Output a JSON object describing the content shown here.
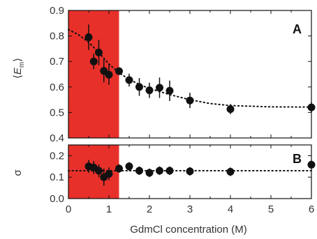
{
  "chart_data": [
    {
      "panel": "A",
      "type": "scatter",
      "panel_label": "A",
      "xlabel": "GdmCl concentration (M)",
      "ylabel": "⟨E_m⟩",
      "xlim": [
        0,
        6
      ],
      "ylim": [
        0.4,
        0.9
      ],
      "x_ticks": [
        "0",
        "1",
        "2",
        "3",
        "4",
        "5",
        "6"
      ],
      "y_ticks": [
        "0.4",
        "0.5",
        "0.6",
        "0.7",
        "0.8",
        "0.9"
      ],
      "y_tick_values": [
        0.4,
        0.5,
        0.6,
        0.7,
        0.8,
        0.9
      ],
      "shaded_region": {
        "x_from": 0,
        "x_to": 1.25,
        "color": "#e8302a"
      },
      "series": [
        {
          "marker": "circle",
          "color": "#111111",
          "x": [
            0.5,
            0.625,
            0.75,
            0.875,
            1.0,
            1.25,
            1.5,
            1.75,
            2.0,
            2.25,
            2.5,
            3.0,
            4.0,
            6.0
          ],
          "y": [
            0.795,
            0.7,
            0.735,
            0.663,
            0.648,
            0.662,
            0.627,
            0.6,
            0.587,
            0.597,
            0.585,
            0.547,
            0.513,
            0.52
          ],
          "error": [
            0.05,
            0.03,
            0.05,
            0.045,
            0.04,
            0.015,
            0.025,
            0.035,
            0.03,
            0.04,
            0.04,
            0.03,
            0.02,
            0.02
          ]
        }
      ],
      "fit": {
        "style": "dotted",
        "x": [
          0,
          0.25,
          0.5,
          0.75,
          1.0,
          1.25,
          1.5,
          1.75,
          2.0,
          2.5,
          3.0,
          3.5,
          4.0,
          5.0,
          6.0
        ],
        "y": [
          0.825,
          0.805,
          0.775,
          0.735,
          0.69,
          0.655,
          0.63,
          0.61,
          0.594,
          0.57,
          0.55,
          0.535,
          0.527,
          0.522,
          0.521
        ]
      }
    },
    {
      "panel": "B",
      "type": "scatter",
      "panel_label": "B",
      "xlabel": "GdmCl concentration (M)",
      "ylabel": "σ",
      "xlim": [
        0,
        6
      ],
      "ylim": [
        0.0,
        0.25
      ],
      "x_ticks": [
        "0",
        "1",
        "2",
        "3",
        "4",
        "5",
        "6"
      ],
      "y_ticks": [
        "0.0",
        "0.1",
        "0.2"
      ],
      "y_tick_values": [
        0.0,
        0.1,
        0.2
      ],
      "shaded_region": {
        "x_from": 0,
        "x_to": 1.25,
        "color": "#e8302a"
      },
      "series": [
        {
          "marker": "circle",
          "color": "#111111",
          "x": [
            0.5,
            0.625,
            0.75,
            0.875,
            1.0,
            1.25,
            1.5,
            1.75,
            2.0,
            2.25,
            2.5,
            3.0,
            4.0,
            6.0
          ],
          "y": [
            0.15,
            0.145,
            0.13,
            0.1,
            0.115,
            0.14,
            0.15,
            0.13,
            0.12,
            0.13,
            0.13,
            0.127,
            0.125,
            0.158
          ],
          "error": [
            0.03,
            0.03,
            0.03,
            0.04,
            0.03,
            0.02,
            0.02,
            0.02,
            0.02,
            0.02,
            0.02,
            0.02,
            0.02,
            0.02
          ]
        }
      ],
      "fit": {
        "style": "dotted",
        "x": [
          0,
          6
        ],
        "y": [
          0.13,
          0.13
        ]
      }
    }
  ]
}
